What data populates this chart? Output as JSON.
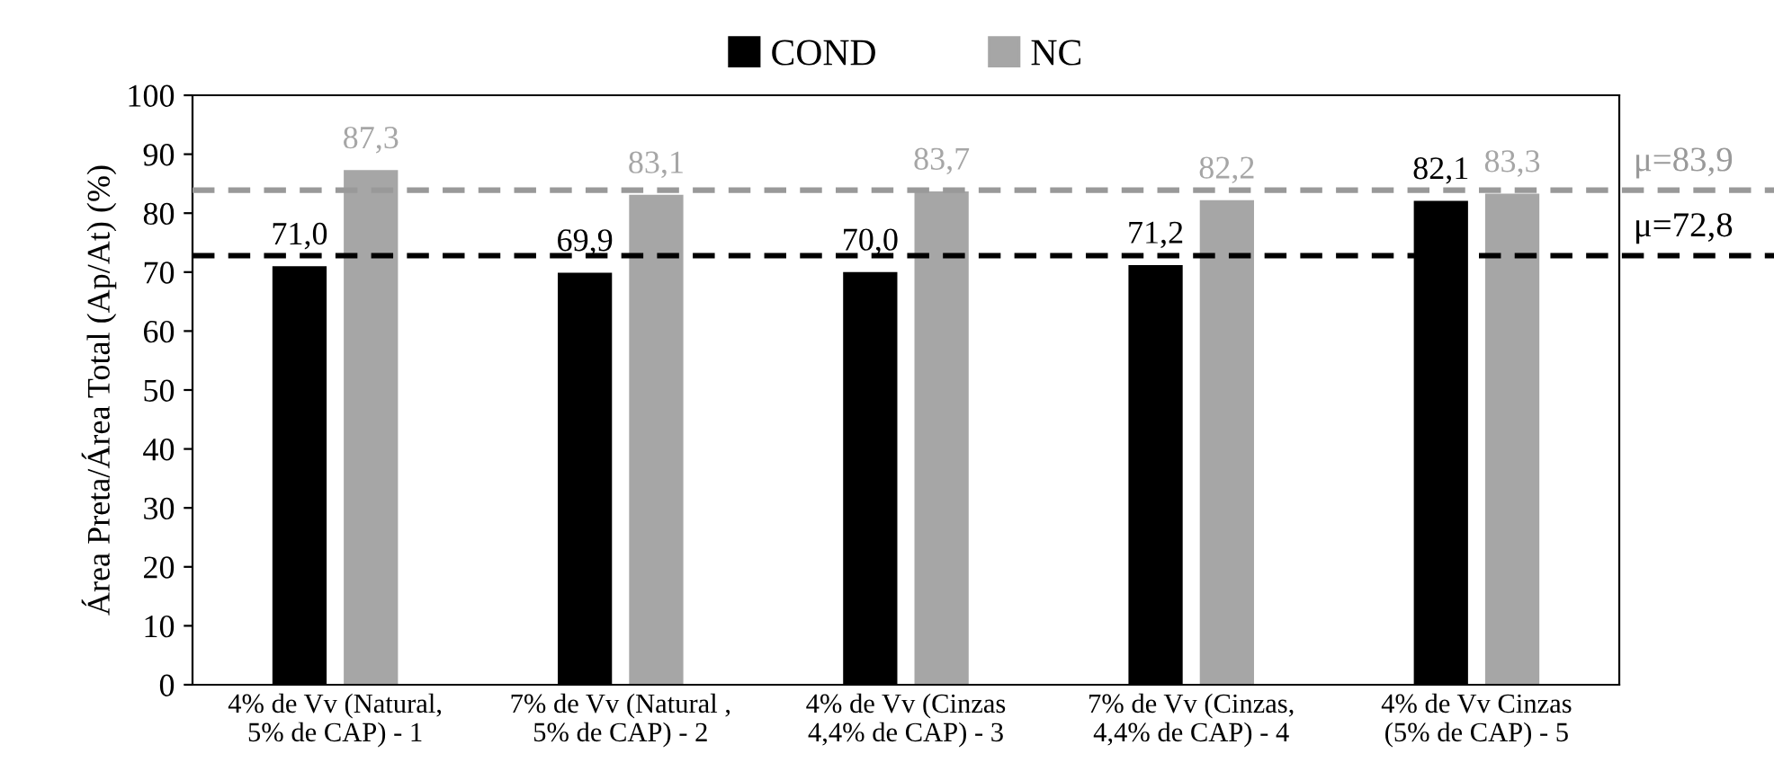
{
  "chart_data": {
    "type": "bar",
    "ylabel": "Área Preta/Área Total (Ap/At) (%)",
    "categories": [
      "4% de Vv (Natural,\n5% de CAP) - 1",
      "7% de Vv (Natural ,\n5% de CAP) - 2",
      "4% de Vv (Cinzas\n4,4% de CAP) - 3",
      "7% de Vv (Cinzas,\n4,4% de CAP) - 4",
      "4% de Vv Cinzas\n(5% de CAP) - 5"
    ],
    "series": [
      {
        "name": "COND",
        "color": "#000000",
        "values": [
          71.0,
          69.9,
          70.0,
          71.2,
          82.1
        ],
        "value_labels": [
          "71,0",
          "69,9",
          "70,0",
          "71,2",
          "82,1"
        ]
      },
      {
        "name": "NC",
        "color": "#a6a6a6",
        "values": [
          87.3,
          83.1,
          83.7,
          82.2,
          83.3
        ],
        "value_labels": [
          "87,3",
          "83,1",
          "83,7",
          "82,2",
          "83,3"
        ]
      }
    ],
    "ylim": [
      0,
      100
    ],
    "yticks": [
      0,
      10,
      20,
      30,
      40,
      50,
      60,
      70,
      80,
      90,
      100
    ],
    "grid": false,
    "legend": "top",
    "ref_lines": [
      {
        "axis": "y",
        "value": 83.9,
        "label": "μ=83,9",
        "color": "#999999",
        "line_style": "dashed"
      },
      {
        "axis": "y",
        "value": 72.8,
        "label": "μ=72,8",
        "color": "#000000",
        "line_style": "dashed"
      }
    ]
  }
}
